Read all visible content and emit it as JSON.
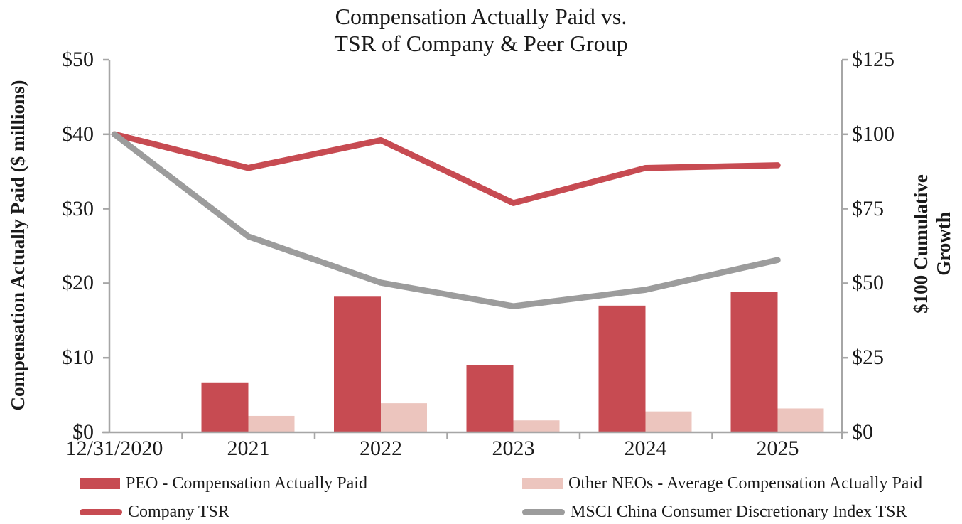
{
  "title": {
    "line1": "Compensation Actually Paid vs.",
    "line2": "TSR of Company & Peer Group"
  },
  "axes": {
    "left": {
      "title": "Compensation Actually Paid ($ millions)",
      "ticks": [
        "$50",
        "$40",
        "$30",
        "$20",
        "$10",
        "$0"
      ],
      "range": [
        0,
        50
      ]
    },
    "right": {
      "title_line1": "$100 Cumulative",
      "title_line2": "Growth",
      "ticks": [
        "$125",
        "$100",
        "$75",
        "$50",
        "$25",
        "$0"
      ],
      "range": [
        0,
        125
      ]
    },
    "x": {
      "labels": [
        "12/31/2020",
        "2021",
        "2022",
        "2023",
        "2024",
        "2025"
      ]
    }
  },
  "colors": {
    "bar_peo": "#C74B52",
    "bar_neo": "#ECC5BE",
    "line_company": "#C74B52",
    "line_index": "#9C9C9C",
    "axis": "#A6A6A6",
    "gridline": "#ABABAB",
    "text": "#1A1A1A"
  },
  "legend": {
    "items": [
      {
        "type": "bar",
        "color_key": "bar_peo",
        "label": "PEO - Compensation Actually Paid"
      },
      {
        "type": "bar",
        "color_key": "bar_neo",
        "label": "Other NEOs - Average Compensation Actually Paid"
      },
      {
        "type": "line",
        "color_key": "line_company",
        "label": "Company TSR"
      },
      {
        "type": "line",
        "color_key": "line_index",
        "label": "MSCI China Consumer Discretionary Index TSR"
      }
    ]
  },
  "chart_data": {
    "type": "combo-bar-line",
    "title": "Compensation Actually Paid vs. TSR of Company & Peer Group",
    "categories": [
      "12/31/2020",
      "2021",
      "2022",
      "2023",
      "2024",
      "2025"
    ],
    "bar_series": [
      {
        "name": "PEO - Compensation Actually Paid",
        "axis": "left",
        "color_key": "bar_peo",
        "values": [
          null,
          6.7,
          18.2,
          9.0,
          17.0,
          18.8
        ]
      },
      {
        "name": "Other NEOs - Average Compensation Actually Paid",
        "axis": "left",
        "color_key": "bar_neo",
        "values": [
          null,
          2.2,
          3.9,
          1.6,
          2.8,
          3.2
        ]
      }
    ],
    "line_series": [
      {
        "name": "Company TSR",
        "axis": "right",
        "color_key": "line_company",
        "values": [
          100,
          88.7,
          98.0,
          76.9,
          88.7,
          89.6
        ]
      },
      {
        "name": "MSCI China Consumer Discretionary Index TSR",
        "axis": "right",
        "color_key": "line_index",
        "values": [
          100,
          65.7,
          50.2,
          42.3,
          47.8,
          57.8
        ]
      }
    ],
    "reference_line": {
      "axis": "right",
      "value": 100,
      "style": "dashed"
    },
    "left_ylim": [
      0,
      50
    ],
    "right_ylim": [
      0,
      125
    ],
    "grid": "single-dashed-reference",
    "legend_position": "bottom"
  }
}
